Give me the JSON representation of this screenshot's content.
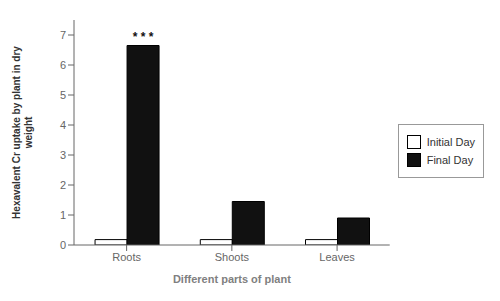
{
  "chart_data": {
    "type": "bar",
    "categories": [
      "Roots",
      "Shoots",
      "Leaves"
    ],
    "series": [
      {
        "name": "Initial Day",
        "color": "#ffffff",
        "values": [
          0.18,
          0.18,
          0.18
        ]
      },
      {
        "name": "Final Day",
        "color": "#111111",
        "values": [
          6.65,
          1.45,
          0.9
        ]
      }
    ],
    "xlabel": "Different parts of plant",
    "ylabel": "Hexavalent Cr uptake by plant in dry\nweight",
    "ylim": [
      0,
      7.5
    ],
    "yticks": [
      0,
      1,
      2,
      3,
      4,
      5,
      6,
      7
    ],
    "grid": false,
    "legend": "right",
    "annotations": [
      {
        "text": "* * *",
        "x": "Roots",
        "y": 6.75,
        "series": "Final Day"
      }
    ]
  }
}
